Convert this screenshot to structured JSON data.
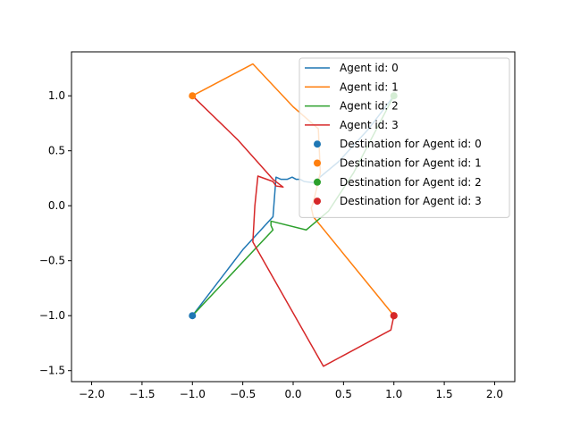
{
  "chart_data": {
    "type": "line",
    "title": "",
    "xlabel": "",
    "ylabel": "",
    "xlim": [
      -2.2,
      2.2
    ],
    "ylim": [
      -1.6,
      1.4
    ],
    "grid": false,
    "legend_position": "top-right",
    "xticks": [
      -2.0,
      -1.5,
      -1.0,
      -0.5,
      0.0,
      0.5,
      1.0,
      1.5,
      2.0
    ],
    "xtick_labels": [
      "−2.0",
      "−1.5",
      "−1.0",
      "−0.5",
      "0.0",
      "0.5",
      "1.0",
      "1.5",
      "2.0"
    ],
    "yticks": [
      -1.5,
      -1.0,
      -0.5,
      0.0,
      0.5,
      1.0
    ],
    "ytick_labels": [
      "−1.5",
      "−1.0",
      "−0.5",
      "0.0",
      "0.5",
      "1.0"
    ],
    "series": [
      {
        "name": "Agent id: 0",
        "color": "#1f77b4",
        "points": [
          [
            -1.0,
            -1.0
          ],
          [
            -0.5,
            -0.4
          ],
          [
            -0.25,
            -0.15
          ],
          [
            -0.2,
            -0.1
          ],
          [
            -0.17,
            0.26
          ],
          [
            -0.12,
            0.24
          ],
          [
            -0.06,
            0.24
          ],
          [
            -0.01,
            0.26
          ],
          [
            0.03,
            0.24
          ],
          [
            0.07,
            0.24
          ],
          [
            0.11,
            0.22
          ],
          [
            0.2,
            0.21
          ],
          [
            0.45,
            0.4
          ],
          [
            0.75,
            0.7
          ],
          [
            1.0,
            1.0
          ]
        ]
      },
      {
        "name": "Agent id: 1",
        "color": "#ff7f0e",
        "points": [
          [
            -1.0,
            1.0
          ],
          [
            -0.4,
            1.29
          ],
          [
            0.0,
            0.9
          ],
          [
            0.25,
            0.7
          ],
          [
            0.27,
            0.3
          ],
          [
            0.2,
            0.03
          ],
          [
            0.18,
            -0.02
          ],
          [
            0.2,
            -0.1
          ],
          [
            0.6,
            -0.55
          ],
          [
            1.0,
            -1.0
          ]
        ]
      },
      {
        "name": "Agent id: 2",
        "color": "#2ca02c",
        "points": [
          [
            -1.0,
            -1.0
          ],
          [
            -0.2,
            -0.22
          ],
          [
            -0.22,
            -0.18
          ],
          [
            -0.22,
            -0.14
          ],
          [
            0.13,
            -0.22
          ],
          [
            0.35,
            -0.05
          ],
          [
            0.6,
            0.3
          ],
          [
            1.0,
            1.0
          ]
        ]
      },
      {
        "name": "Agent id: 3",
        "color": "#d62728",
        "points": [
          [
            -1.0,
            1.0
          ],
          [
            -0.55,
            0.6
          ],
          [
            -0.2,
            0.24
          ],
          [
            -0.1,
            0.17
          ],
          [
            -0.17,
            0.18
          ],
          [
            -0.2,
            0.22
          ],
          [
            -0.35,
            0.27
          ],
          [
            -0.38,
            0.0
          ],
          [
            -0.4,
            -0.33
          ],
          [
            0.3,
            -1.46
          ],
          [
            0.97,
            -1.13
          ],
          [
            1.0,
            -1.0
          ]
        ]
      }
    ],
    "destinations": [
      {
        "name": "Destination for Agent id: 0",
        "color": "#1f77b4",
        "x": -1.0,
        "y": -1.0
      },
      {
        "name": "Destination for Agent id: 1",
        "color": "#ff7f0e",
        "x": 1.0,
        "y": -1.0
      },
      {
        "name": "Destination for Agent id: 2",
        "color": "#2ca02c",
        "x": 1.0,
        "y": 1.0
      },
      {
        "name": "Destination for Agent id: 3",
        "color": "#d62728",
        "x": 1.0,
        "y": -1.0
      }
    ],
    "extra_markers": [
      {
        "color": "#ff7f0e",
        "x": -1.0,
        "y": 1.0
      },
      {
        "color": "#d62728",
        "x": 1.0,
        "y": -1.0
      }
    ]
  }
}
